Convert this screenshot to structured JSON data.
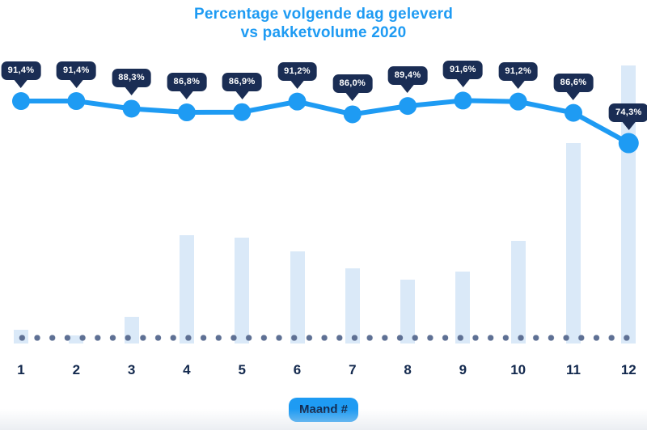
{
  "title": {
    "line1": "Percentage volgende dag geleverd",
    "line2": "vs pakketvolume 2020"
  },
  "chart_data": {
    "type": "line+bar",
    "title": "Percentage volgende dag geleverd vs pakketvolume 2020",
    "xlabel": "Maand #",
    "ylabel": "",
    "categories": [
      "1",
      "2",
      "3",
      "4",
      "5",
      "6",
      "7",
      "8",
      "9",
      "10",
      "11",
      "12"
    ],
    "series": [
      {
        "name": "Percentage volgende dag geleverd",
        "type": "line",
        "values": [
          91.4,
          91.4,
          88.3,
          86.8,
          86.9,
          91.2,
          86.0,
          89.4,
          91.6,
          91.2,
          86.6,
          74.3
        ],
        "labels": [
          "91,4%",
          "91,4%",
          "88,3%",
          "86,8%",
          "86,9%",
          "91,2%",
          "86,0%",
          "89,4%",
          "91,6%",
          "91,2%",
          "86,6%",
          "74,3%"
        ]
      },
      {
        "name": "Pakketvolume 2020",
        "type": "bar",
        "values_relative_pct_of_max": [
          5,
          3,
          9.5,
          39,
          38,
          33,
          27,
          23,
          26,
          37,
          72,
          100
        ],
        "note": "Geen y-as zichtbaar; staafhoogtes geschat relatief t.o.v. hoogste staaf (maand 12 = 100)"
      }
    ],
    "legend": "none",
    "grid": "none; dotted baseline along x-axis",
    "data_label_style": "dark rounded tooltip bubbles with down-pointer above each line marker"
  },
  "colors": {
    "accent_blue": "#1E9BF3",
    "tooltip_navy": "#1A2D54",
    "label_navy": "#13294E",
    "bar_fill": "#DAE9F8",
    "dot_color": "#5E7094",
    "background": "#FFFFFF",
    "tooltip_text": "#FFFFFF"
  }
}
